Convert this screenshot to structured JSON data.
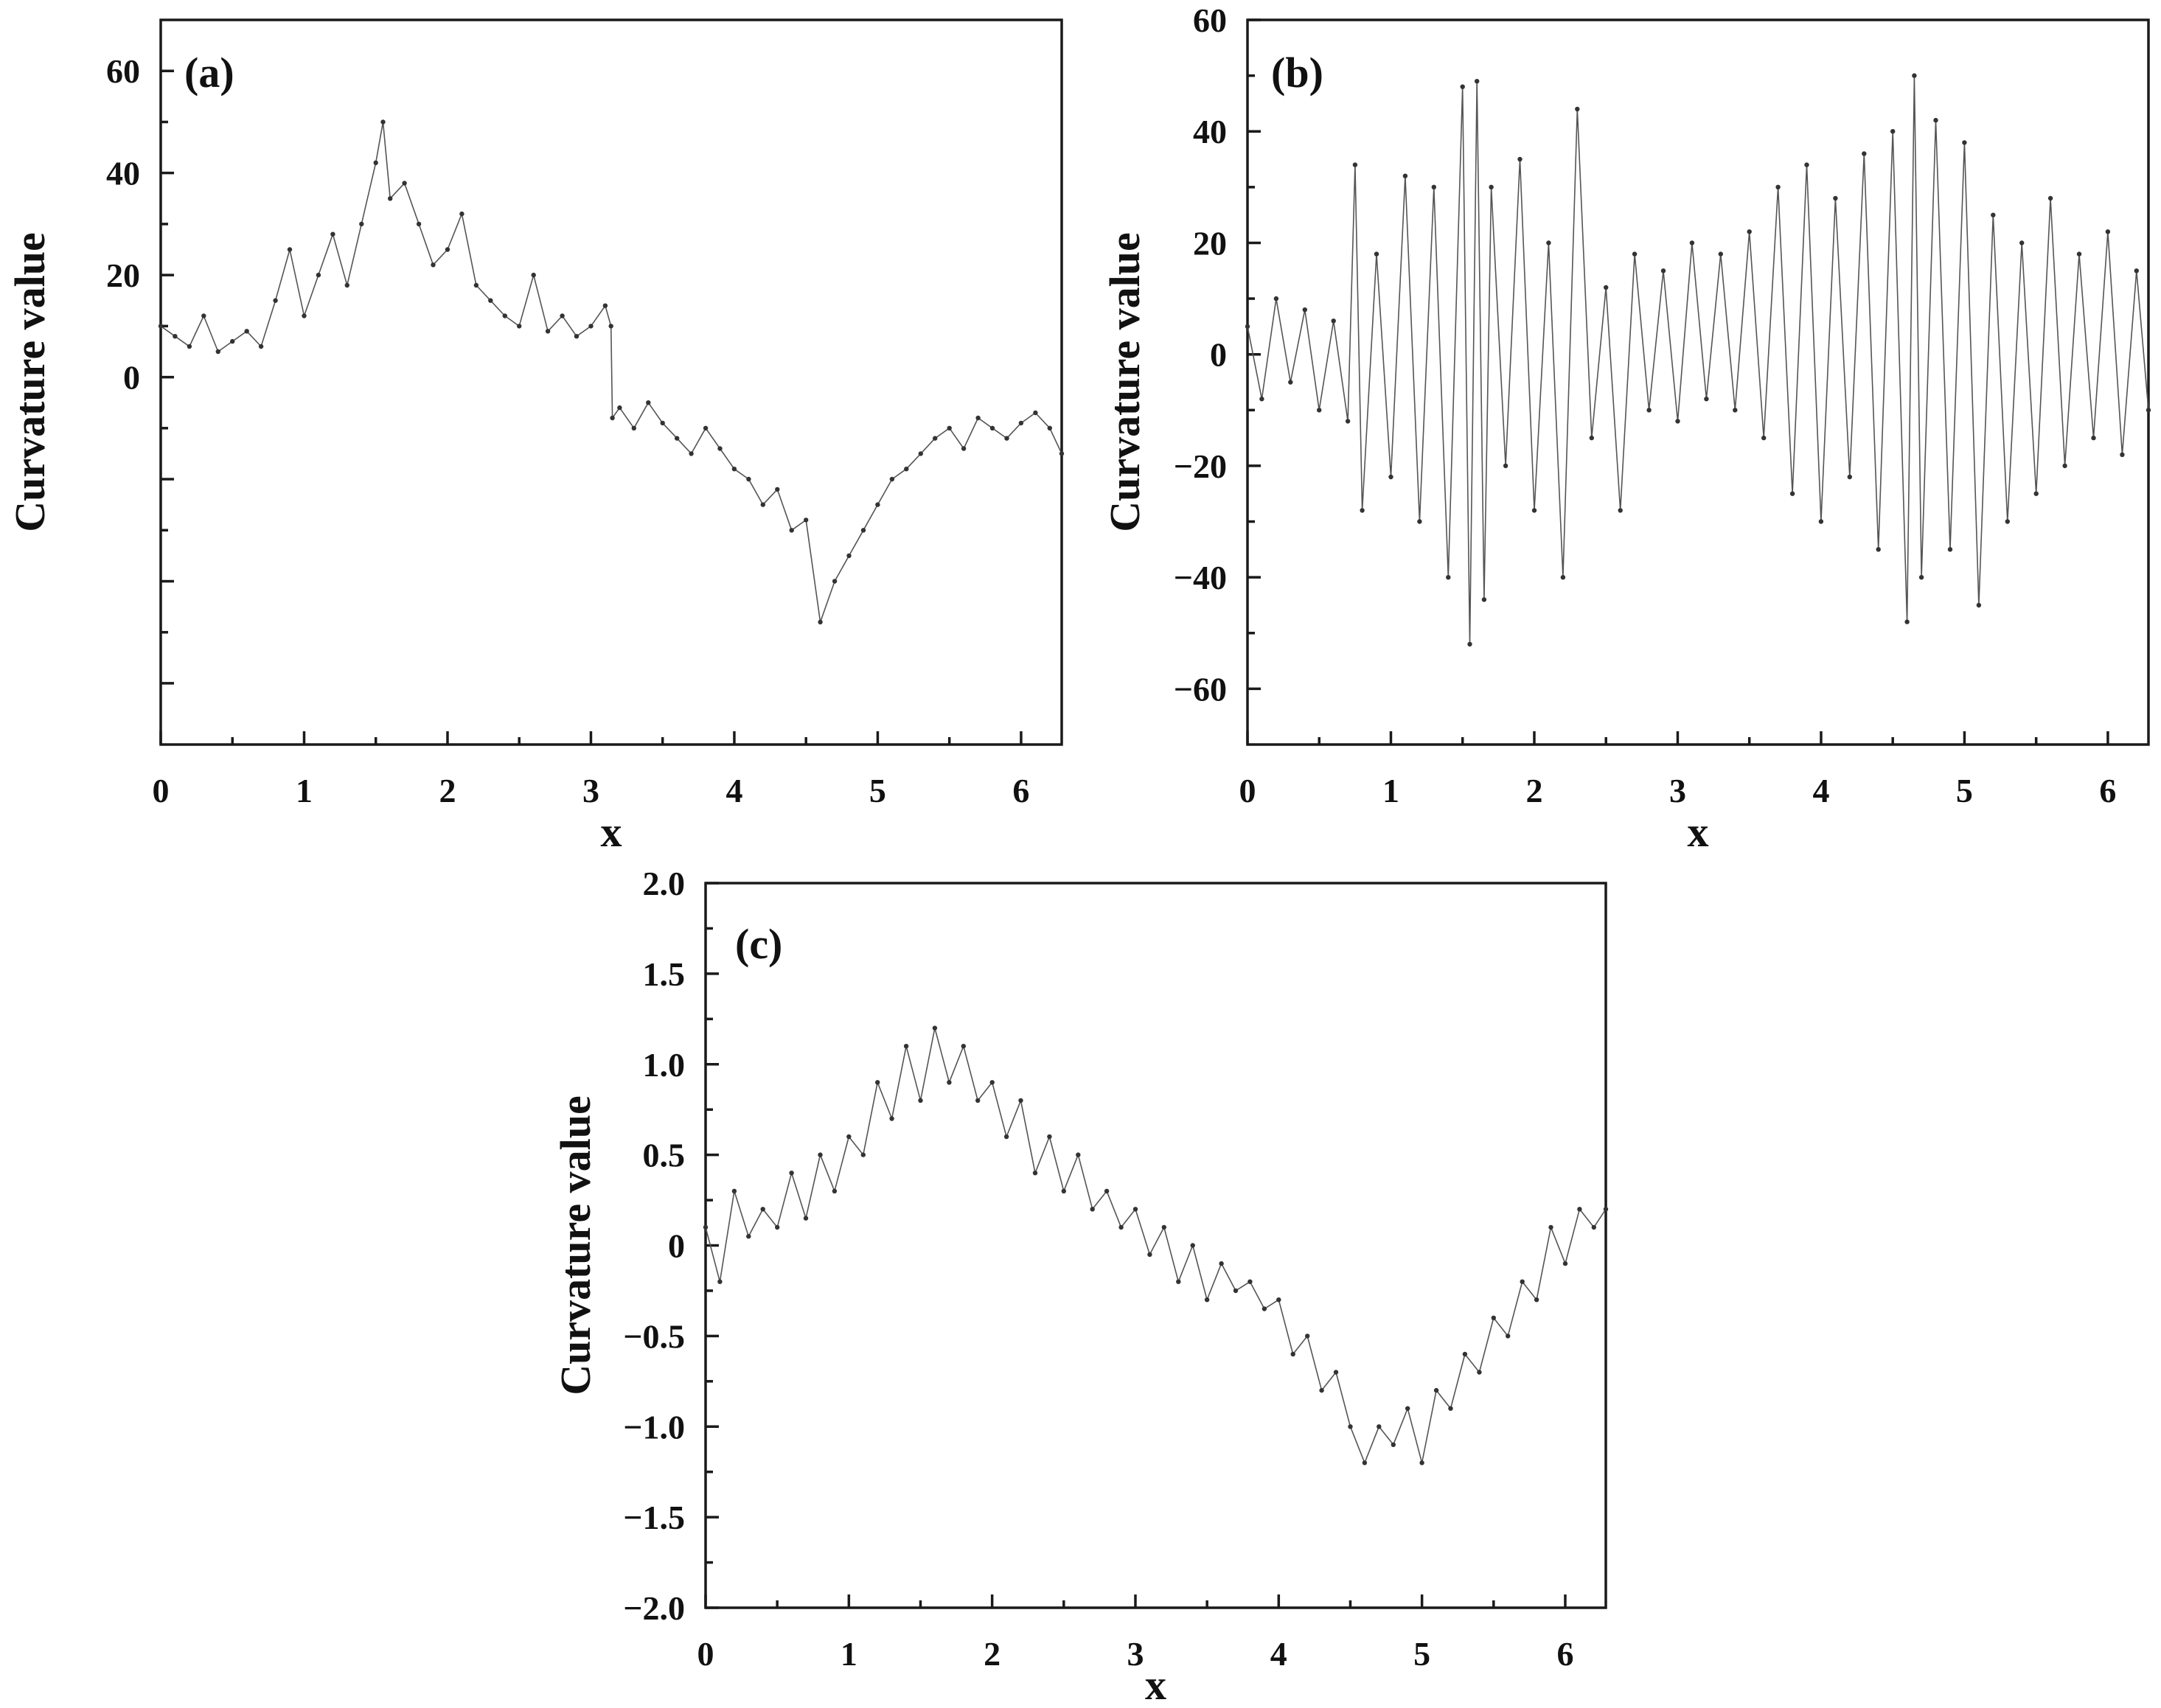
{
  "colors": {
    "axis": "#1a1a1a",
    "line": "#555555",
    "marker": "#333333"
  },
  "chart_data": [
    {
      "type": "line",
      "panel_label": "(a)",
      "xlabel": "x",
      "ylabel": "Curvature value",
      "xlim": [
        0,
        6.2832
      ],
      "ylim": [
        -72,
        70
      ],
      "x_ticks": [
        0,
        1,
        2,
        3,
        4,
        5,
        6
      ],
      "x_tick_labels": [
        "0",
        "1",
        "2",
        "3",
        "4",
        "5",
        "6"
      ],
      "y_ticks": [
        -60,
        -40,
        -20,
        0,
        20,
        40,
        60
      ],
      "y_tick_labels": [
        "",
        "",
        "",
        "0",
        "20",
        "40",
        "60"
      ],
      "grid": false,
      "legend": "none",
      "marker": "dot",
      "series": [
        {
          "x": [
            0,
            0.1,
            0.2,
            0.3,
            0.4,
            0.5,
            0.6,
            0.7,
            0.8,
            0.9,
            1,
            1.1,
            1.2,
            1.3,
            1.4,
            1.5,
            1.55,
            1.6,
            1.7,
            1.8,
            1.9,
            2,
            2.1,
            2.2,
            2.3,
            2.4,
            2.5,
            2.6,
            2.7,
            2.8,
            2.9,
            3,
            3.1,
            3.14,
            3.15,
            3.2,
            3.3,
            3.4,
            3.5,
            3.6,
            3.7,
            3.8,
            3.9,
            4,
            4.1,
            4.2,
            4.3,
            4.4,
            4.5,
            4.6,
            4.7,
            4.8,
            4.9,
            5,
            5.1,
            5.2,
            5.3,
            5.4,
            5.5,
            5.6,
            5.7,
            5.8,
            5.9,
            6,
            6.1,
            6.2,
            6.2832
          ],
          "y": [
            10,
            8,
            6,
            12,
            5,
            7,
            9,
            6,
            15,
            25,
            12,
            20,
            28,
            18,
            30,
            42,
            50,
            35,
            38,
            30,
            22,
            25,
            32,
            18,
            15,
            12,
            10,
            20,
            9,
            12,
            8,
            10,
            14,
            10,
            -8,
            -6,
            -10,
            -5,
            -9,
            -12,
            -15,
            -10,
            -14,
            -18,
            -20,
            -25,
            -22,
            -30,
            -28,
            -48,
            -40,
            -35,
            -30,
            -25,
            -20,
            -18,
            -15,
            -12,
            -10,
            -14,
            -8,
            -10,
            -12,
            -9,
            -7,
            -10,
            -15
          ]
        }
      ]
    },
    {
      "type": "line",
      "panel_label": "(b)",
      "xlabel": "x",
      "ylabel": "Curvature value",
      "xlim": [
        0,
        6.2832
      ],
      "ylim": [
        -70,
        60
      ],
      "x_ticks": [
        0,
        1,
        2,
        3,
        4,
        5,
        6
      ],
      "x_tick_labels": [
        "0",
        "1",
        "2",
        "3",
        "4",
        "5",
        "6"
      ],
      "y_ticks": [
        -60,
        -40,
        -20,
        0,
        20,
        40,
        60
      ],
      "y_tick_labels": [
        "−60",
        "−40",
        "−20",
        "0",
        "20",
        "40",
        "60"
      ],
      "grid": false,
      "legend": "none",
      "marker": "dot",
      "series": [
        {
          "x": [
            0,
            0.1,
            0.2,
            0.3,
            0.4,
            0.5,
            0.6,
            0.7,
            0.75,
            0.8,
            0.9,
            1,
            1.1,
            1.2,
            1.3,
            1.4,
            1.5,
            1.55,
            1.6,
            1.65,
            1.7,
            1.8,
            1.9,
            2,
            2.1,
            2.2,
            2.3,
            2.4,
            2.5,
            2.6,
            2.7,
            2.8,
            2.9,
            3,
            3.1,
            3.2,
            3.3,
            3.4,
            3.5,
            3.6,
            3.7,
            3.8,
            3.9,
            4,
            4.1,
            4.2,
            4.3,
            4.4,
            4.5,
            4.6,
            4.65,
            4.7,
            4.8,
            4.9,
            5,
            5.1,
            5.2,
            5.3,
            5.4,
            5.5,
            5.6,
            5.7,
            5.8,
            5.9,
            6,
            6.1,
            6.2,
            6.2832
          ],
          "y": [
            5,
            -8,
            10,
            -5,
            8,
            -10,
            6,
            -12,
            34,
            -28,
            18,
            -22,
            32,
            -30,
            30,
            -40,
            48,
            -52,
            49,
            -44,
            30,
            -20,
            35,
            -28,
            20,
            -40,
            44,
            -15,
            12,
            -28,
            18,
            -10,
            15,
            -12,
            20,
            -8,
            18,
            -10,
            22,
            -15,
            30,
            -25,
            34,
            -30,
            28,
            -22,
            36,
            -35,
            40,
            -48,
            50,
            -40,
            42,
            -35,
            38,
            -45,
            25,
            -30,
            20,
            -25,
            28,
            -20,
            18,
            -15,
            22,
            -18,
            15,
            -10
          ]
        }
      ]
    },
    {
      "type": "line",
      "panel_label": "(c)",
      "xlabel": "x",
      "ylabel": "Curvature value",
      "xlim": [
        0,
        6.2832
      ],
      "ylim": [
        -2.0,
        2.0
      ],
      "x_ticks": [
        0,
        1,
        2,
        3,
        4,
        5,
        6
      ],
      "x_tick_labels": [
        "0",
        "1",
        "2",
        "3",
        "4",
        "5",
        "6"
      ],
      "y_ticks": [
        -2.0,
        -1.5,
        -1.0,
        -0.5,
        0,
        0.5,
        1.0,
        1.5,
        2.0
      ],
      "y_tick_labels": [
        "−2.0",
        "−1.5",
        "−1.0",
        "−0.5",
        "0",
        "0.5",
        "1.0",
        "1.5",
        "2.0"
      ],
      "grid": false,
      "legend": "none",
      "marker": "dot",
      "series": [
        {
          "x": [
            0,
            0.1,
            0.2,
            0.3,
            0.4,
            0.5,
            0.6,
            0.7,
            0.8,
            0.9,
            1,
            1.1,
            1.2,
            1.3,
            1.4,
            1.5,
            1.6,
            1.7,
            1.8,
            1.9,
            2,
            2.1,
            2.2,
            2.3,
            2.4,
            2.5,
            2.6,
            2.7,
            2.8,
            2.9,
            3,
            3.1,
            3.2,
            3.3,
            3.4,
            3.5,
            3.6,
            3.7,
            3.8,
            3.9,
            4,
            4.1,
            4.2,
            4.3,
            4.4,
            4.5,
            4.6,
            4.7,
            4.8,
            4.9,
            5,
            5.1,
            5.2,
            5.3,
            5.4,
            5.5,
            5.6,
            5.7,
            5.8,
            5.9,
            6,
            6.1,
            6.2,
            6.2832
          ],
          "y": [
            0.1,
            -0.2,
            0.3,
            0.05,
            0.2,
            0.1,
            0.4,
            0.15,
            0.5,
            0.3,
            0.6,
            0.5,
            0.9,
            0.7,
            1.1,
            0.8,
            1.2,
            0.9,
            1.1,
            0.8,
            0.9,
            0.6,
            0.8,
            0.4,
            0.6,
            0.3,
            0.5,
            0.2,
            0.3,
            0.1,
            0.2,
            -0.05,
            0.1,
            -0.2,
            0.0,
            -0.3,
            -0.1,
            -0.25,
            -0.2,
            -0.35,
            -0.3,
            -0.6,
            -0.5,
            -0.8,
            -0.7,
            -1.0,
            -1.2,
            -1.0,
            -1.1,
            -0.9,
            -1.2,
            -0.8,
            -0.9,
            -0.6,
            -0.7,
            -0.4,
            -0.5,
            -0.2,
            -0.3,
            0.1,
            -0.1,
            0.2,
            0.1,
            0.2
          ]
        }
      ]
    }
  ]
}
